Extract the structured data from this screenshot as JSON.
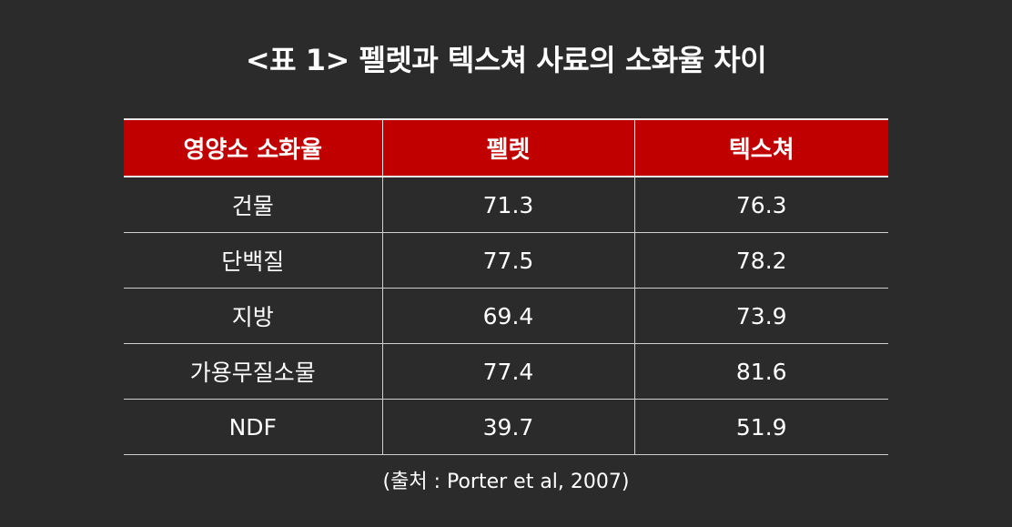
{
  "title": "<표 1> 펠렛과 텍스쳐 사료의 소화율 차이",
  "table": {
    "headers": [
      "영양소 소화율",
      "펠렛",
      "텍스쳐"
    ],
    "rows": [
      {
        "nutrient": "건물",
        "pellet": "71.3",
        "texture": "76.3"
      },
      {
        "nutrient": "단백질",
        "pellet": "77.5",
        "texture": "78.2"
      },
      {
        "nutrient": "지방",
        "pellet": "69.4",
        "texture": "73.9"
      },
      {
        "nutrient": "가용무질소물",
        "pellet": "77.4",
        "texture": "81.6"
      },
      {
        "nutrient": "NDF",
        "pellet": "39.7",
        "texture": "51.9"
      }
    ]
  },
  "source": "(출처 : Porter et al, 2007)",
  "colors": {
    "background": "#2b2b2b",
    "header": "#c00000",
    "text": "#ffffff"
  }
}
